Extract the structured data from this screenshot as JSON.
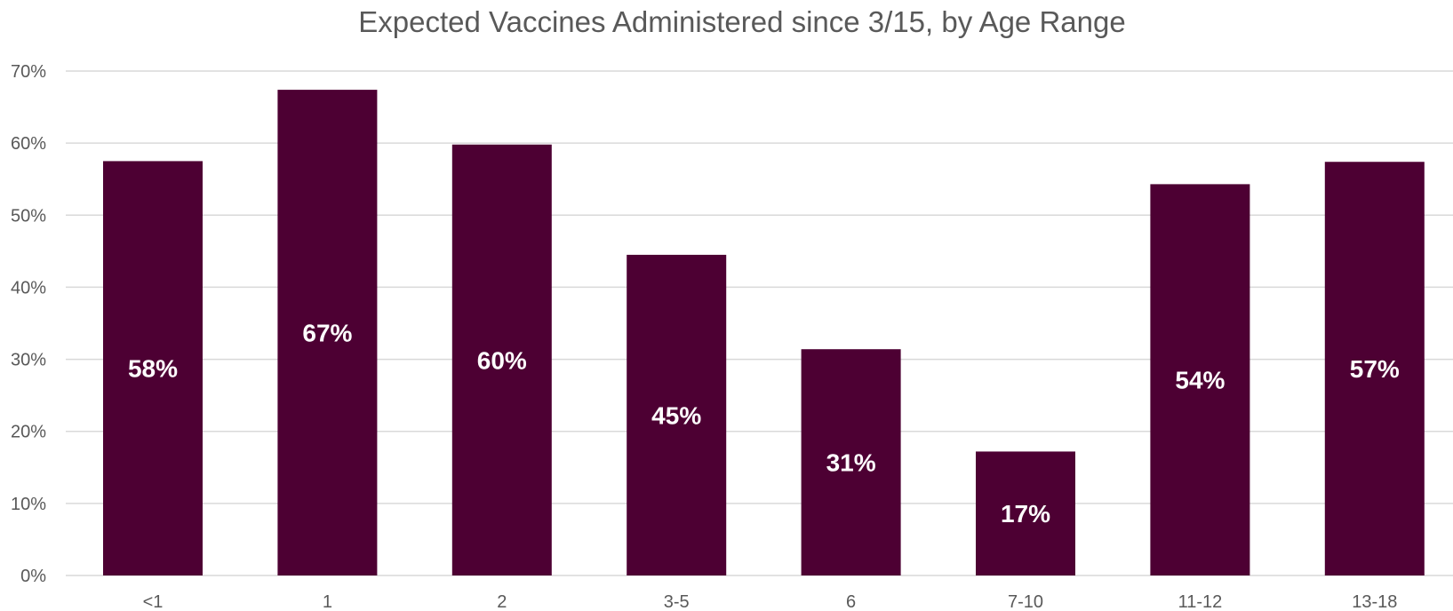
{
  "chart_data": {
    "type": "bar",
    "title": "Expected Vaccines Administered since 3/15, by Age Range",
    "xlabel": "",
    "ylabel": "",
    "categories": [
      "<1",
      "1",
      "2",
      "3-5",
      "6",
      "7-10",
      "11-12",
      "13-18"
    ],
    "values": [
      0.575,
      0.674,
      0.598,
      0.445,
      0.314,
      0.172,
      0.543,
      0.574
    ],
    "data_labels": [
      "58%",
      "67%",
      "60%",
      "45%",
      "31%",
      "17%",
      "54%",
      "57%"
    ],
    "ylim": [
      0,
      0.7
    ],
    "y_ticks": [
      0,
      0.1,
      0.2,
      0.3,
      0.4,
      0.5,
      0.6,
      0.7
    ],
    "y_tick_labels": [
      "0%",
      "10%",
      "20%",
      "30%",
      "40%",
      "50%",
      "60%",
      "70%"
    ],
    "grid": true,
    "legend": "none",
    "bar_color": "#4d0033"
  }
}
